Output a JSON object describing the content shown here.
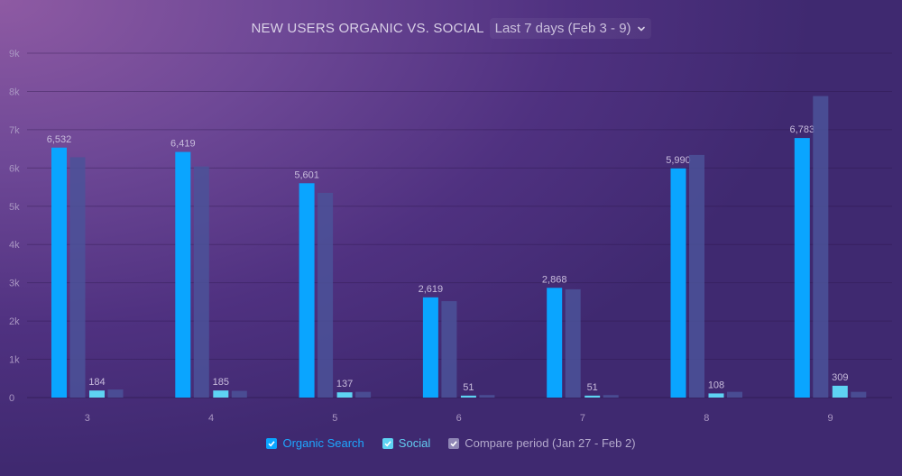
{
  "header": {
    "title": "NEW USERS ORGANIC VS. SOCIAL",
    "period_label": "Last 7 days (Feb 3 - 9)",
    "period_icon": "chevron-down-icon"
  },
  "legend": [
    {
      "label": "Organic Search",
      "color": "#0aa5ff",
      "checked": true,
      "text_color": "#1ea7ff"
    },
    {
      "label": "Social",
      "color": "#5ed3f3",
      "checked": true,
      "text_color": "#62cbf0"
    },
    {
      "label": "Compare period (Jan 27 - Feb 2)",
      "color": "#8f86b5",
      "checked": true,
      "text_color": "#b3a9cc"
    }
  ],
  "chart_data": {
    "type": "bar",
    "title": "NEW USERS ORGANIC VS. SOCIAL",
    "xlabel": "",
    "ylabel": "",
    "categories": [
      "3",
      "4",
      "5",
      "6",
      "7",
      "8",
      "9"
    ],
    "ylim": [
      0,
      9000
    ],
    "yticks": [
      0,
      1000,
      2000,
      3000,
      4000,
      5000,
      6000,
      7000,
      8000,
      9000
    ],
    "ytick_labels": [
      "0",
      "1k",
      "2k",
      "3k",
      "4k",
      "5k",
      "6k",
      "7k",
      "8k",
      "9k"
    ],
    "grid": true,
    "legend_position": "bottom",
    "series": [
      {
        "name": "Organic Search",
        "color": "#0aa5ff",
        "values": [
          6532,
          6419,
          5601,
          2619,
          2868,
          5990,
          6783
        ],
        "labels": [
          "6,532",
          "6,419",
          "5,601",
          "2,619",
          "2,868",
          "5,990",
          "6,783"
        ]
      },
      {
        "name": "Organic Search (Compare period)",
        "color": "#4b5299",
        "values": [
          6280,
          6040,
          5350,
          2520,
          2830,
          6340,
          7880
        ]
      },
      {
        "name": "Social",
        "color": "#5ed3f3",
        "values": [
          184,
          185,
          137,
          51,
          51,
          108,
          309
        ],
        "labels": [
          "184",
          "185",
          "137",
          "51",
          "51",
          "108",
          "309"
        ]
      },
      {
        "name": "Social (Compare period)",
        "color": "#4b5299",
        "values": [
          210,
          175,
          150,
          65,
          65,
          150,
          150
        ]
      }
    ]
  }
}
